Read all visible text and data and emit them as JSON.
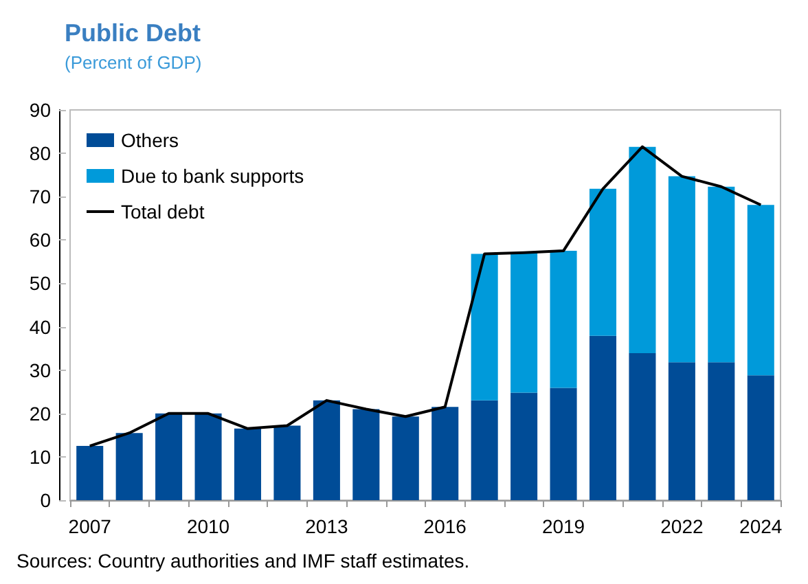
{
  "chart_data": {
    "type": "bar",
    "title": "Public Debt",
    "subtitle": "(Percent of GDP)",
    "categories": [
      "2007",
      null,
      null,
      "2010",
      null,
      null,
      "2013",
      null,
      null,
      "2016",
      null,
      null,
      "2019",
      null,
      null,
      "2022",
      null,
      "2024"
    ],
    "stacked": true,
    "series": [
      {
        "name": "Others",
        "color": "#004c97",
        "values": [
          12.5,
          15.5,
          20,
          20,
          16.5,
          17.2,
          23,
          21,
          19.3,
          21.5,
          23,
          24.8,
          25.9,
          37.9,
          33.9,
          31.8,
          31.8,
          28.8
        ]
      },
      {
        "name": "Due to bank supports",
        "color": "#009ada",
        "values": [
          null,
          null,
          null,
          null,
          null,
          null,
          null,
          null,
          null,
          null,
          33.8,
          32.3,
          31.6,
          33.9,
          47.6,
          42.9,
          40.5,
          39.3
        ]
      },
      {
        "name": "Total debt",
        "type": "line",
        "color": "#000000",
        "values": [
          12.5,
          15.5,
          20,
          20,
          16.5,
          17.2,
          23,
          21,
          19.3,
          21.5,
          56.8,
          57.1,
          57.5,
          71.8,
          81.5,
          74.7,
          72.3,
          68.1
        ]
      }
    ],
    "ylim": [
      0,
      90
    ],
    "yticks": [
      0,
      10,
      20,
      30,
      40,
      50,
      60,
      70,
      80,
      90
    ],
    "grid": false,
    "legend": "top left",
    "marker": "none",
    "annotations": [
      "Sources: Country authorities and IMF staff estimates."
    ]
  }
}
